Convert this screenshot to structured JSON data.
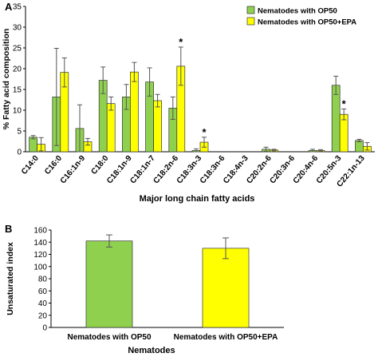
{
  "colors": {
    "green": "#8fd14f",
    "yellow": "#ffff00",
    "axis": "#000000",
    "err": "#555555"
  },
  "panel_labels": [
    "A",
    "B"
  ],
  "chart_data": [
    {
      "type": "bar",
      "panel": "A",
      "title": "",
      "ylabel": "% Fatty acid composition",
      "xlabel": "Major long chain  fatty acids",
      "ylim": [
        0,
        35
      ],
      "yticks": [
        0,
        5,
        10,
        15,
        20,
        25,
        30,
        35
      ],
      "categories": [
        "C14:0",
        "C16:0",
        "C16:1n-9",
        "C18:0",
        "C18:1n-9",
        "C18:1n-7",
        "C18:2n-6",
        "C18:3n-3",
        "C18:3n-6",
        "C18:4n-3",
        "C20:2n-6",
        "C20:3n-6",
        "C20:4n-6",
        "C20:5n-3",
        "C22:1n-13"
      ],
      "legend_position": "top-right",
      "series": [
        {
          "name": "Nematodes with OP50",
          "color": "#8fd14f",
          "values": [
            3.5,
            13.2,
            5.6,
            17.2,
            13.2,
            16.8,
            10.5,
            0.3,
            0,
            0,
            0.6,
            0,
            0.3,
            16.0,
            2.7
          ],
          "errors": [
            0.4,
            11.7,
            5.7,
            3.2,
            3.0,
            3.4,
            2.7,
            0.4,
            0,
            0,
            0.5,
            0,
            0.3,
            2.2,
            0.3
          ]
        },
        {
          "name": "Nematodes with OP50+EPA",
          "color": "#ffff00",
          "values": [
            1.8,
            19.1,
            2.4,
            11.6,
            19.2,
            12.3,
            20.6,
            2.3,
            0,
            0,
            0.4,
            0,
            0.3,
            9.0,
            1.3
          ],
          "errors": [
            1.6,
            3.5,
            0.8,
            1.6,
            2.3,
            1.5,
            4.6,
            1.2,
            0,
            0,
            0.2,
            0,
            0.2,
            1.3,
            0.9
          ]
        }
      ],
      "annotations": [
        {
          "text": "*",
          "category": "C18:2n-6",
          "series": 1
        },
        {
          "text": "*",
          "category": "C18:3n-3",
          "series": 1
        },
        {
          "text": "*",
          "category": "C20:5n-3",
          "series": 1
        }
      ]
    },
    {
      "type": "bar",
      "panel": "B",
      "title": "",
      "ylabel": "Unsaturated index",
      "xlabel": "Nematodes",
      "ylim": [
        0,
        160
      ],
      "yticks": [
        0,
        20,
        40,
        60,
        80,
        100,
        120,
        140,
        160
      ],
      "categories": [
        "Nematodes with OP50",
        "Nematodes with OP50+EPA"
      ],
      "values": [
        142,
        130
      ],
      "errors": [
        10,
        17
      ],
      "colors": [
        "#8fd14f",
        "#ffff00"
      ]
    }
  ]
}
